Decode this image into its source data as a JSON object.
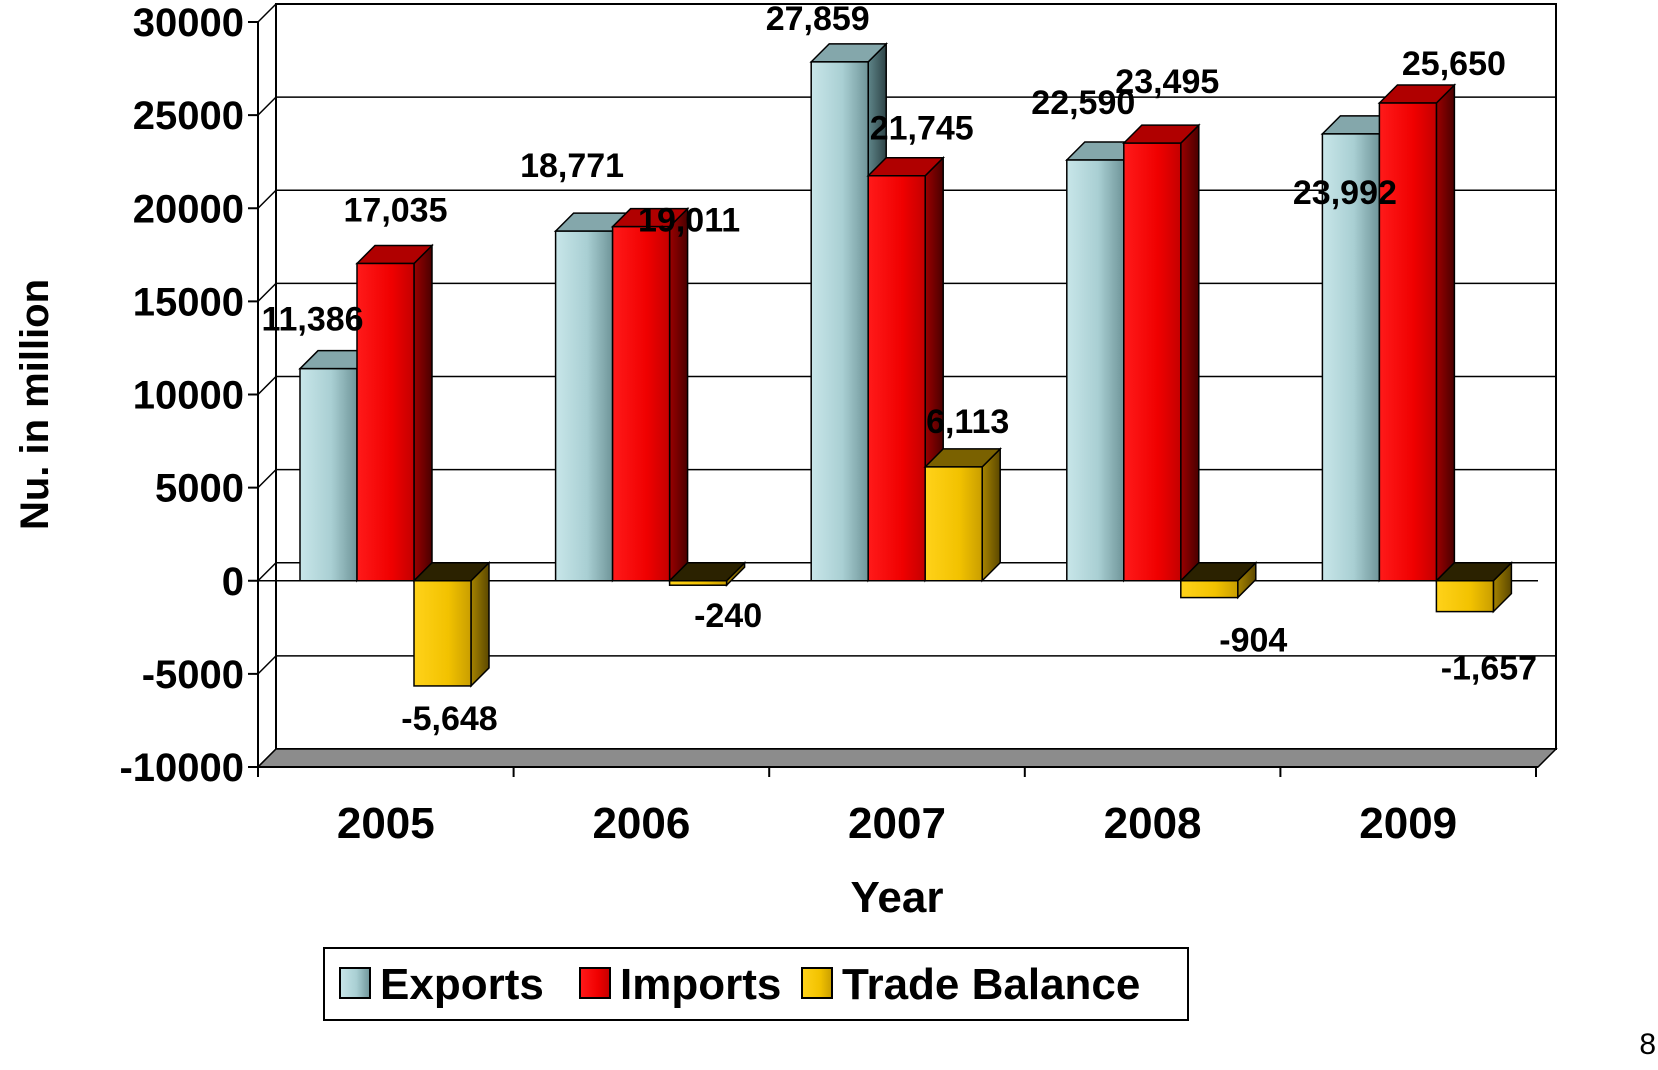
{
  "chart_data": {
    "type": "bar",
    "categories": [
      "2005",
      "2006",
      "2007",
      "2008",
      "2009"
    ],
    "series": [
      {
        "name": "Exports",
        "values": [
          11386,
          18771,
          27859,
          22590,
          23992
        ],
        "labels": [
          "11,386",
          "18,771",
          "27,859",
          "22,590",
          "23,992"
        ],
        "color": "#b8dde1"
      },
      {
        "name": "Imports",
        "values": [
          17035,
          19011,
          21745,
          23495,
          25650
        ],
        "labels": [
          "17,035",
          "19,011",
          "21,745",
          "23,495",
          "25,650"
        ],
        "color": "#ff0000"
      },
      {
        "name": "Trade Balance",
        "values": [
          -5648,
          -240,
          6113,
          -904,
          -1657
        ],
        "labels": [
          "-5,648",
          "-240",
          "6,113",
          "-904",
          "-1,657"
        ],
        "color": "#ffcc00"
      }
    ],
    "xlabel": "Year",
    "ylabel": "Nu. in million",
    "ylim": [
      -10000,
      30000
    ],
    "yticks": [
      "30000",
      "25000",
      "20000",
      "15000",
      "10000",
      "5000",
      "0",
      "-5000",
      "-10000"
    ],
    "legend": "bottom",
    "grid": true,
    "style": "3d-column"
  },
  "page_number": "8"
}
